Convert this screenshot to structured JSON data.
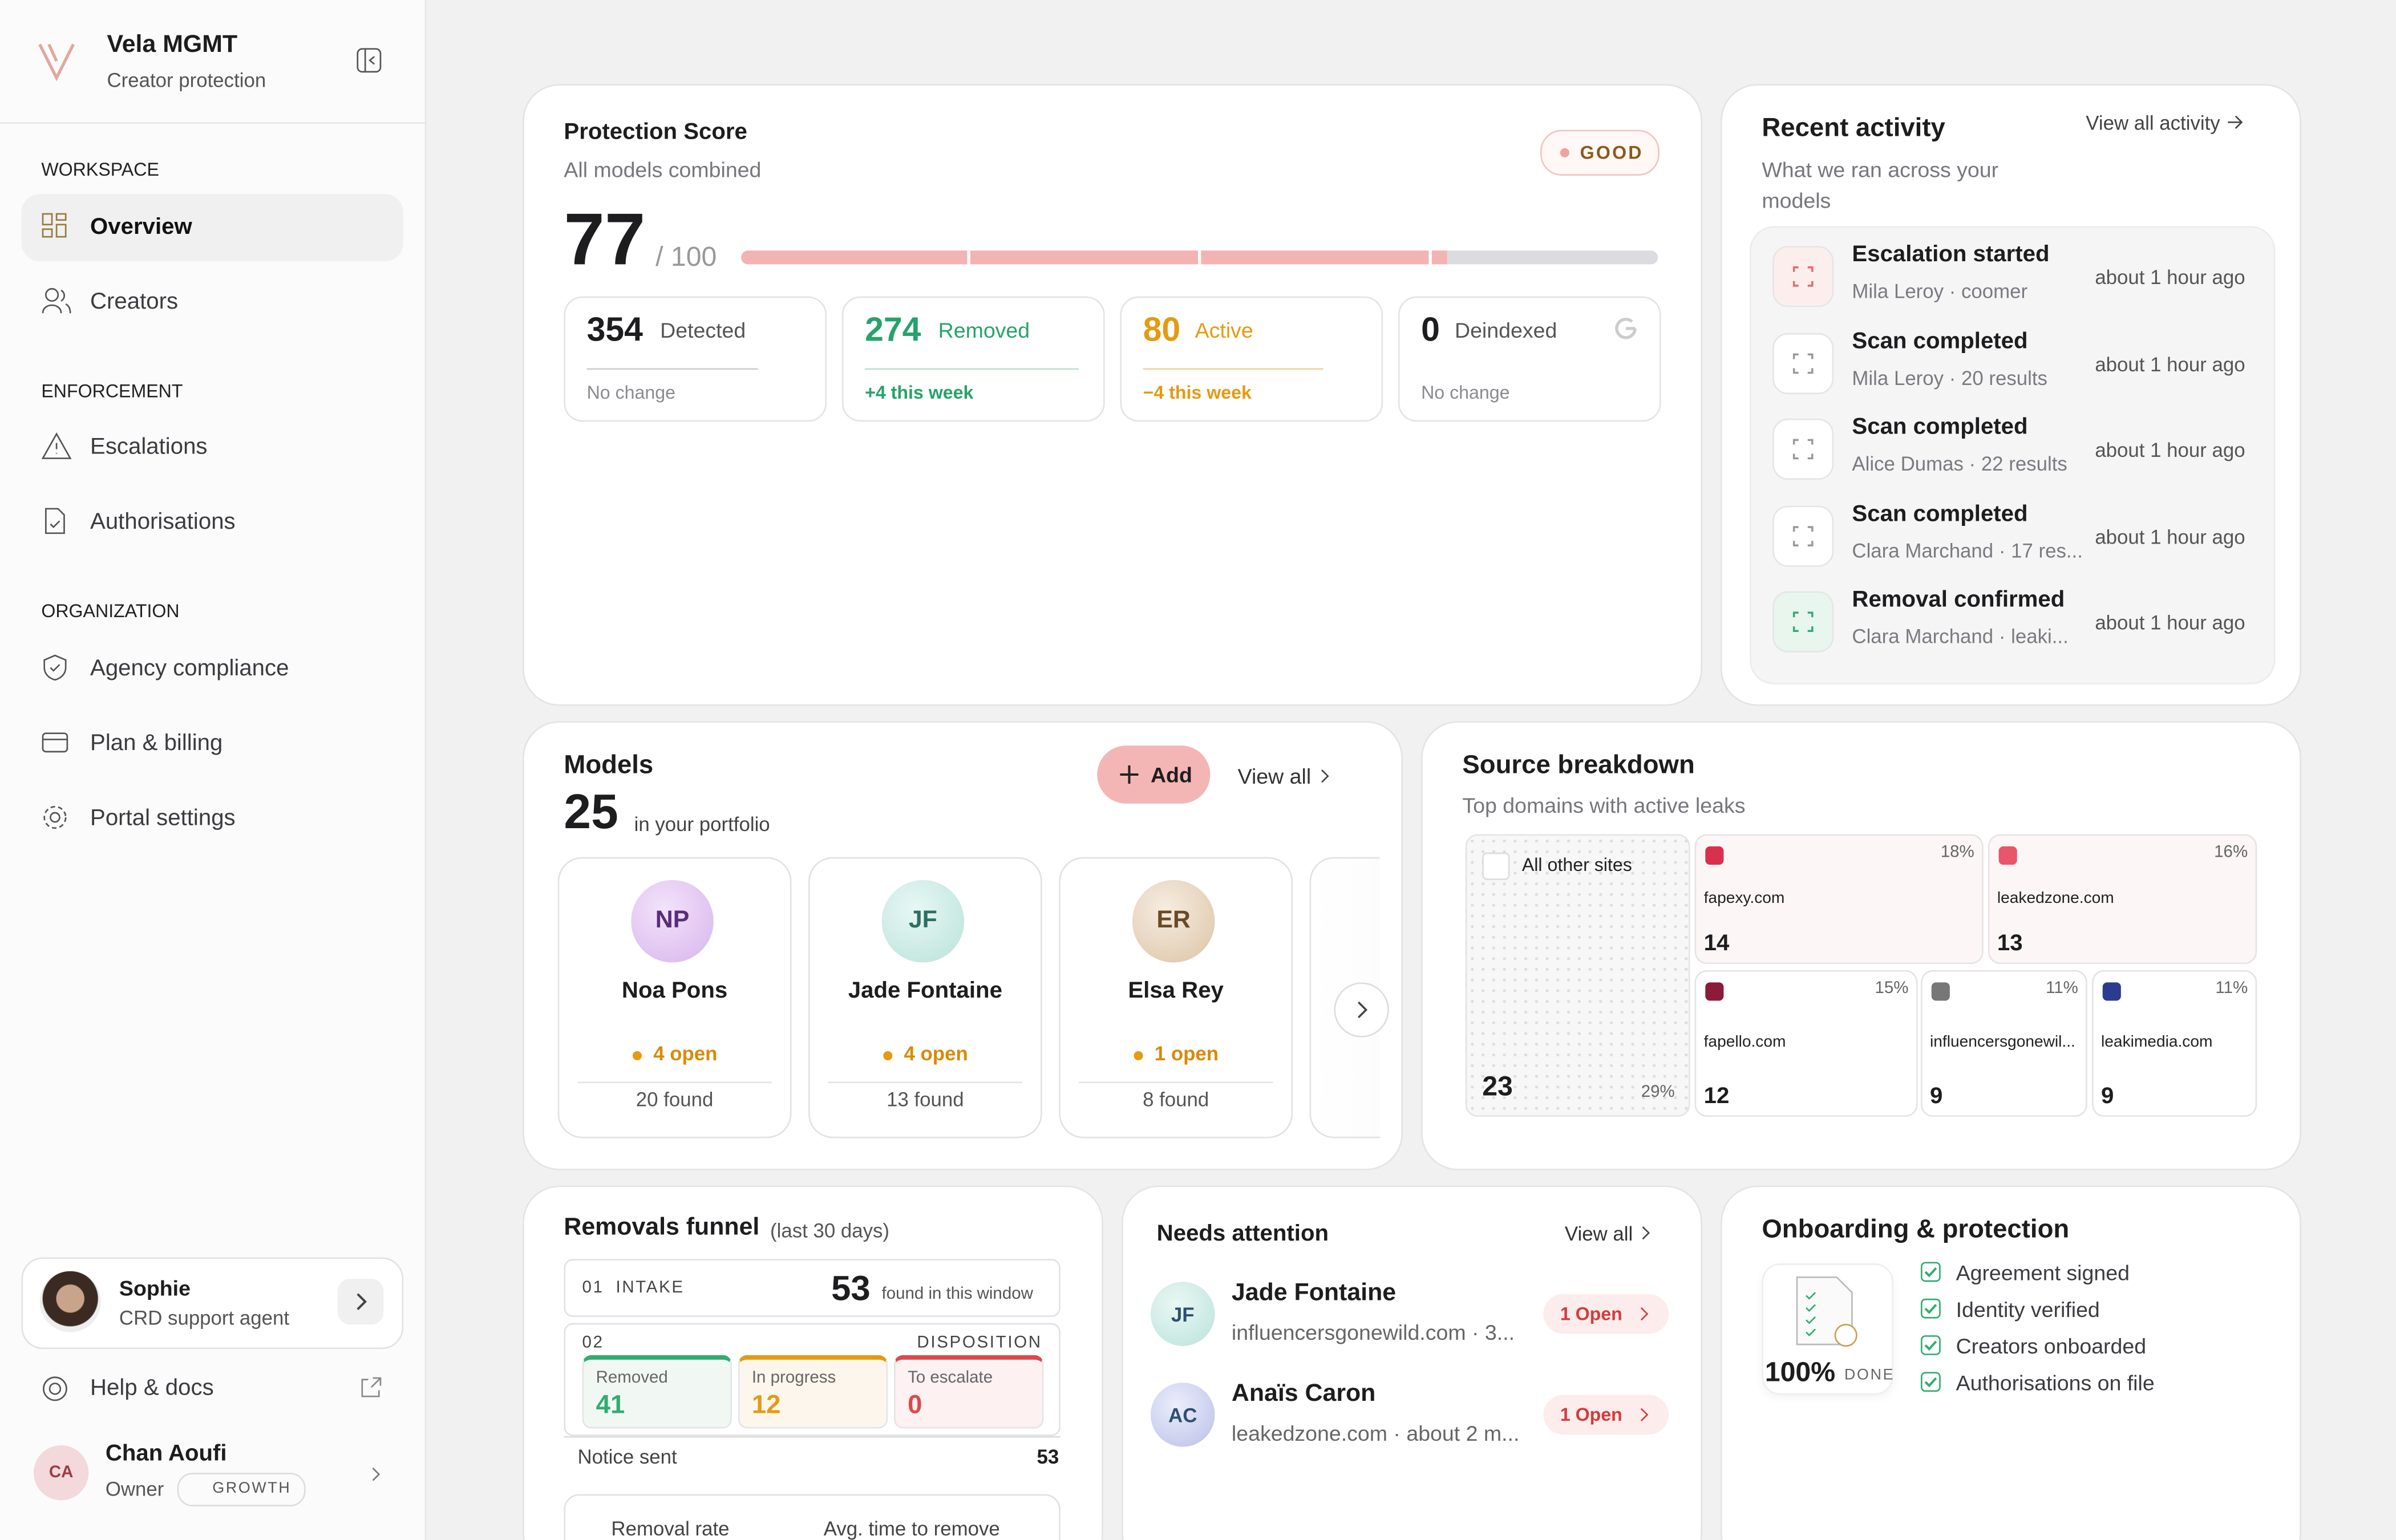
{
  "sidebar": {
    "brand": "Vela MGMT",
    "tagline": "Creator protection",
    "sections": [
      {
        "title": "WORKSPACE",
        "items": [
          "Overview",
          "Creators"
        ]
      },
      {
        "title": "ENFORCEMENT",
        "items": [
          "Escalations",
          "Authorisations"
        ]
      },
      {
        "title": "ORGANIZATION",
        "items": [
          "Agency compliance",
          "Plan & billing",
          "Portal settings"
        ]
      }
    ],
    "support": {
      "name": "Sophie",
      "role": "CRD support agent"
    },
    "help": "Help & docs",
    "user": {
      "initials": "CA",
      "name": "Chan Aoufi",
      "role": "Owner",
      "plan": "GROWTH"
    }
  },
  "protection": {
    "title": "Protection Score",
    "subtitle": "All models combined",
    "badge": "GOOD",
    "score": 77,
    "score_max": {
      "value": 100,
      "label": "/ 100"
    },
    "stats": [
      {
        "value": 354,
        "label": "Detected",
        "note": "No change"
      },
      {
        "value": 274,
        "label": "Removed",
        "note": "+4 this week"
      },
      {
        "value": 80,
        "label": "Active",
        "note": "−4 this week"
      },
      {
        "value": 0,
        "label": "Deindexed",
        "note": "No change"
      }
    ]
  },
  "activity": {
    "title": "Recent activity",
    "link": "View all activity",
    "subtitle": "What we ran across your models",
    "items": [
      {
        "title": "Escalation started",
        "detail": "Mila Leroy · coomer",
        "time": "about 1 hour ago"
      },
      {
        "title": "Scan completed",
        "detail": "Mila Leroy · 20 results",
        "time": "about 1 hour ago"
      },
      {
        "title": "Scan completed",
        "detail": "Alice Dumas · 22 results",
        "time": "about 1 hour ago"
      },
      {
        "title": "Scan completed",
        "detail": "Clara Marchand · 17 res...",
        "time": "about 1 hour ago"
      },
      {
        "title": "Removal confirmed",
        "detail": "Clara Marchand · leaki...",
        "time": "about 1 hour ago"
      }
    ]
  },
  "models": {
    "title": "Models",
    "count": 25,
    "count_label": "in your portfolio",
    "add": "Add",
    "view_all": "View all",
    "cards": [
      {
        "initials": "NP",
        "name": "Noa Pons",
        "open": "4 open",
        "found": "20 found"
      },
      {
        "initials": "JF",
        "name": "Jade Fontaine",
        "open": "4 open",
        "found": "13 found"
      },
      {
        "initials": "ER",
        "name": "Elsa Rey",
        "open": "1 open",
        "found": "8 found"
      }
    ]
  },
  "sources": {
    "title": "Source breakdown",
    "subtitle": "Top domains with active leaks",
    "tiles": [
      {
        "name": "All other sites",
        "count": 23,
        "pct": "29%"
      },
      {
        "name": "fapexy.com",
        "count": 14,
        "pct": "18%"
      },
      {
        "name": "leakedzone.com",
        "count": 13,
        "pct": "16%"
      },
      {
        "name": "fapello.com",
        "count": 12,
        "pct": "15%"
      },
      {
        "name": "influencersgonewil...",
        "count": 9,
        "pct": "11%"
      },
      {
        "name": "leakimedia.com",
        "count": 9,
        "pct": "11%"
      }
    ]
  },
  "funnel": {
    "title": "Removals funnel",
    "period": "(last 30 days)",
    "intake": {
      "step": "01",
      "label": "INTAKE",
      "count": 53,
      "note": "found in this window"
    },
    "disposition": {
      "step": "02",
      "label": "DISPOSITION",
      "items": [
        {
          "label": "Removed",
          "value": 41
        },
        {
          "label": "In progress",
          "value": 12
        },
        {
          "label": "To escalate",
          "value": 0
        }
      ]
    },
    "notice": {
      "label": "Notice sent",
      "value": 53
    },
    "footer": [
      "Removal rate",
      "Avg. time to remove"
    ]
  },
  "attention": {
    "title": "Needs attention",
    "view_all": "View all",
    "items": [
      {
        "initials": "JF",
        "name": "Jade Fontaine",
        "detail": "influencersgonewild.com · 3...",
        "badge": "1 Open"
      },
      {
        "initials": "AC",
        "name": "Anaïs Caron",
        "detail": "leakedzone.com · about 2 m...",
        "badge": "1 Open"
      }
    ]
  },
  "onboarding": {
    "title": "Onboarding & protection",
    "percent": "100%",
    "done": "DONE",
    "checks": [
      "Agreement signed",
      "Identity verified",
      "Creators onboarded",
      "Authorisations on file"
    ]
  }
}
